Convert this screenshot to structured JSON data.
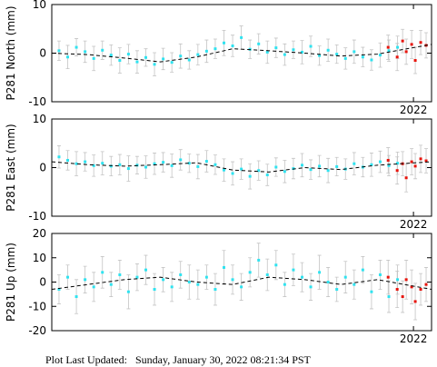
{
  "chart_data": [
    {
      "type": "scatter",
      "ylabel": "P281 North (mm)",
      "xlim": [
        2012,
        2022.5
      ],
      "xticks": [
        2022
      ],
      "ylim": [
        -10,
        10
      ],
      "yticks": [
        -10,
        0,
        10
      ],
      "series": [
        {
          "style": "points",
          "color": "#2fe3f0",
          "x": [
            2012.2,
            2012.44,
            2012.68,
            2012.92,
            2013.16,
            2013.4,
            2013.64,
            2013.88,
            2014.12,
            2014.36,
            2014.6,
            2014.84,
            2015.08,
            2015.32,
            2015.56,
            2015.8,
            2016.04,
            2016.28,
            2016.52,
            2016.76,
            2017,
            2017.24,
            2017.48,
            2017.72,
            2017.96,
            2018.2,
            2018.44,
            2018.68,
            2018.92,
            2019.16,
            2019.4,
            2019.64,
            2019.88,
            2020.12,
            2020.36,
            2020.6,
            2020.84,
            2021.08,
            2021.32,
            2021.56
          ],
          "values": [
            0.5,
            -0.8,
            1.2,
            0.3,
            -1.1,
            0.6,
            -0.4,
            -1.5,
            -0.2,
            -1.8,
            -0.9,
            -2.3,
            -1.2,
            -1.9,
            -0.6,
            -1.4,
            -0.3,
            0.4,
            0.9,
            2.1,
            1.5,
            3.2,
            0.8,
            1.9,
            0.2,
            1.1,
            -0.3,
            0.7,
            0.2,
            1.4,
            -0.5,
            0.6,
            -0.2,
            -1.1,
            0.3,
            -0.8,
            -1.4,
            -0.4,
            0.5,
            1.2
          ],
          "errors": [
            2,
            2.4,
            1.8,
            2.2,
            2.5,
            1.9,
            2.1,
            2.6,
            2,
            2.3,
            1.8,
            2.4,
            2.2,
            2,
            2.5,
            1.9,
            2.1,
            2.3,
            2,
            2.6,
            2.2,
            2.4,
            1.9,
            2.1,
            2.3,
            2,
            2.2,
            1.8,
            2.4,
            2.1,
            2,
            2.3,
            1.9,
            2.2,
            2.4,
            2,
            2.1,
            2.5,
            2.2,
            2.3
          ]
        },
        {
          "style": "points",
          "color": "#e8140c",
          "x": [
            2021.3,
            2021.55,
            2021.7,
            2021.8,
            2021.95,
            2022.05,
            2022.2,
            2022.35
          ],
          "values": [
            1.2,
            -0.8,
            2.5,
            0.3,
            1.8,
            -1.5,
            2.2,
            1.6
          ],
          "errors": [
            2.5,
            2.8,
            2.4,
            2.6,
            2.9,
            2.7,
            2.5,
            2.6
          ]
        },
        {
          "style": "dashed-line",
          "color": "#000000",
          "x": [
            2012,
            2013,
            2014,
            2015,
            2016,
            2017,
            2018,
            2019,
            2020,
            2021,
            2022.5
          ],
          "values": [
            0,
            -0.3,
            -1,
            -1.8,
            -0.8,
            0.9,
            0.5,
            0,
            -0.6,
            -0.2,
            1.8
          ]
        }
      ]
    },
    {
      "type": "scatter",
      "ylabel": "P281 East (mm)",
      "xlim": [
        2012,
        2022.5
      ],
      "xticks": [
        2022
      ],
      "ylim": [
        -10,
        10
      ],
      "yticks": [
        -10,
        0,
        10
      ],
      "series": [
        {
          "style": "points",
          "color": "#2fe3f0",
          "x": [
            2012.2,
            2012.44,
            2012.68,
            2012.92,
            2013.16,
            2013.4,
            2013.64,
            2013.88,
            2014.12,
            2014.36,
            2014.6,
            2014.84,
            2015.08,
            2015.32,
            2015.56,
            2015.8,
            2016.04,
            2016.28,
            2016.52,
            2016.76,
            2017,
            2017.24,
            2017.48,
            2017.72,
            2017.96,
            2018.2,
            2018.44,
            2018.68,
            2018.92,
            2019.16,
            2019.4,
            2019.64,
            2019.88,
            2020.12,
            2020.36,
            2020.6,
            2020.84,
            2021.08,
            2021.32,
            2021.56
          ],
          "values": [
            2.2,
            1.5,
            0.8,
            1.2,
            0.4,
            0.9,
            0.3,
            0.6,
            -0.2,
            0.5,
            0.1,
            0.8,
            1.1,
            0.4,
            1.6,
            0.9,
            0.2,
            1.3,
            0.6,
            -0.5,
            -1.2,
            -0.3,
            -1.8,
            -0.6,
            -1.5,
            0.1,
            -0.8,
            -0.2,
            0.5,
            -0.4,
            0.3,
            -0.6,
            0.2,
            -0.3,
            0.8,
            0.1,
            0.6,
            1.2,
            0.4,
            0.9
          ],
          "errors": [
            2.3,
            2,
            2.5,
            1.9,
            2.2,
            2.4,
            2,
            2.1,
            2.6,
            1.8,
            2.3,
            2.2,
            2,
            2.4,
            2.1,
            1.9,
            2.5,
            2.2,
            2,
            2.3,
            2.4,
            2.1,
            2.6,
            2,
            2.2,
            1.9,
            2.3,
            2.1,
            2.4,
            2,
            2.2,
            2.5,
            1.9,
            2.1,
            2.3,
            2,
            2.4,
            2.2,
            2.1,
            2.3
          ]
        },
        {
          "style": "points",
          "color": "#e8140c",
          "x": [
            2021.3,
            2021.55,
            2021.7,
            2021.8,
            2021.95,
            2022.05,
            2022.2,
            2022.35
          ],
          "values": [
            1.5,
            -0.6,
            0.8,
            -2.1,
            1.2,
            0.3,
            1.8,
            1.4
          ],
          "errors": [
            2.6,
            2.8,
            2.5,
            2.9,
            2.7,
            2.6,
            2.8,
            2.5
          ]
        },
        {
          "style": "dashed-line",
          "color": "#000000",
          "x": [
            2012,
            2013,
            2014,
            2015,
            2016,
            2017,
            2018,
            2019,
            2020,
            2021,
            2022.5
          ],
          "values": [
            1.2,
            0.6,
            0.3,
            0.6,
            1,
            -0.5,
            -0.9,
            0,
            -0.4,
            0.5,
            1.2
          ]
        }
      ]
    },
    {
      "type": "scatter",
      "ylabel": "P281 Up (mm)",
      "xlim": [
        2012,
        2022.5
      ],
      "xticks": [
        2022
      ],
      "ylim": [
        -20,
        20
      ],
      "yticks": [
        -20,
        -10,
        0,
        10,
        20
      ],
      "series": [
        {
          "style": "points",
          "color": "#2fe3f0",
          "x": [
            2012.2,
            2012.44,
            2012.68,
            2012.92,
            2013.16,
            2013.4,
            2013.64,
            2013.88,
            2014.12,
            2014.36,
            2014.6,
            2014.84,
            2015.08,
            2015.32,
            2015.56,
            2015.8,
            2016.04,
            2016.28,
            2016.52,
            2016.76,
            2017,
            2017.24,
            2017.48,
            2017.72,
            2017.96,
            2018.2,
            2018.44,
            2018.68,
            2018.92,
            2019.16,
            2019.4,
            2019.64,
            2019.88,
            2020.12,
            2020.36,
            2020.6,
            2020.84,
            2021.08,
            2021.32,
            2021.56
          ],
          "values": [
            -3,
            2,
            -6,
            1,
            -2,
            4,
            -1,
            3,
            -4,
            2,
            5,
            -3,
            1,
            -2,
            3,
            0,
            -1,
            2,
            -3,
            6,
            1,
            -2,
            4,
            9,
            3,
            7,
            -1,
            5,
            2,
            -2,
            4,
            0,
            -3,
            2,
            -1,
            5,
            -4,
            3,
            -6,
            1
          ],
          "errors": [
            6,
            5,
            7,
            5.5,
            6,
            6.5,
            5,
            6,
            7,
            5.5,
            6,
            6.5,
            5,
            6,
            5.5,
            7,
            6,
            5,
            6.5,
            7,
            6,
            5.5,
            6,
            7,
            6.5,
            6,
            5,
            6.5,
            6,
            5.5,
            7,
            6,
            5,
            6.5,
            6,
            5.5,
            7,
            6,
            6.5,
            6
          ]
        },
        {
          "style": "points",
          "color": "#e8140c",
          "x": [
            2021.3,
            2021.55,
            2021.7,
            2021.8,
            2021.95,
            2022.05,
            2022.2,
            2022.35
          ],
          "values": [
            2,
            -3,
            -6,
            1,
            -2,
            -8,
            -3,
            -1
          ],
          "errors": [
            7,
            7.5,
            6.5,
            8,
            7,
            7.5,
            6.5,
            7
          ]
        },
        {
          "style": "dashed-line",
          "color": "#000000",
          "x": [
            2012,
            2013,
            2014,
            2015,
            2016,
            2017,
            2018,
            2019,
            2020,
            2021,
            2022.5
          ],
          "values": [
            -3,
            -1,
            1,
            2,
            0,
            -1,
            2,
            1,
            -1,
            1,
            -3
          ]
        }
      ]
    }
  ],
  "footer": "Plot Last Updated:   Sunday, January 30, 2022 08:21:34 PST"
}
